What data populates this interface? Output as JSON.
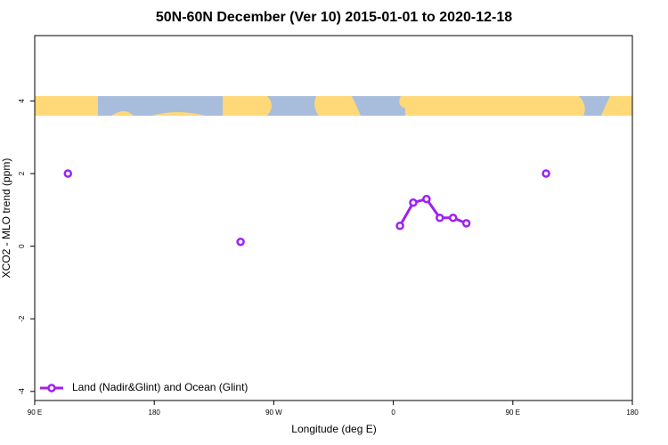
{
  "chart_data": {
    "type": "line",
    "title": "50N-60N December (Ver 10)   2015-01-01 to 2020-12-18",
    "x_label": "Longitude (deg E)",
    "y_label": "XCO2 - MLO trend (ppm)",
    "x": [
      115,
      125,
      245,
      255,
      365,
      375,
      385,
      395,
      405,
      415,
      425,
      475
    ],
    "series": [
      {
        "name": "Land (Nadir&Glint) and Ocean (Glint)",
        "color": "#a020f0",
        "values": [
          2.0,
          null,
          0.12,
          null,
          0.56,
          1.2,
          1.3,
          0.78,
          0.78,
          0.63,
          null,
          2.0
        ]
      }
    ],
    "xlim": [
      90,
      540
    ],
    "xticks": [
      {
        "value": 90,
        "label": "90 E"
      },
      180,
      {
        "value": 270,
        "label": "90 W"
      },
      {
        "value": 360,
        "label": "0"
      },
      {
        "value": 450,
        "label": "90 E"
      },
      {
        "value": 540,
        "label": "180"
      }
    ],
    "ylim": [
      -4.25,
      5.8
    ],
    "yticks": [
      -4,
      -2,
      0,
      2,
      4
    ],
    "grid": false,
    "legend": "bottom-left"
  }
}
